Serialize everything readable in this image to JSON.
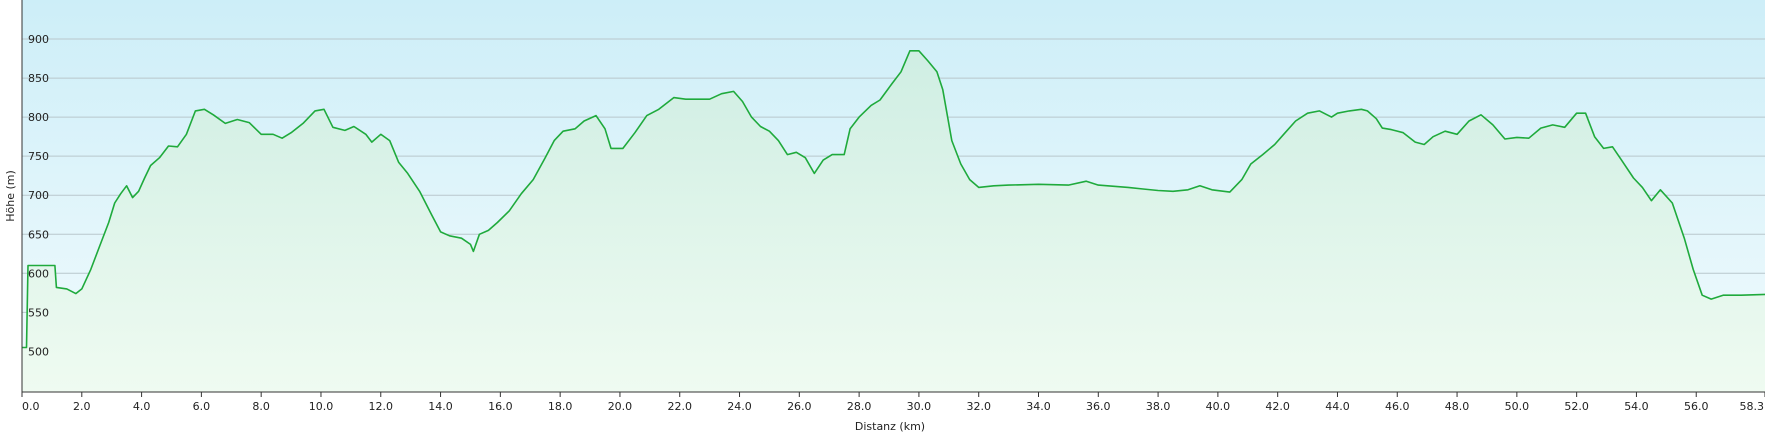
{
  "chart_data": {
    "type": "area",
    "xlabel": "Distanz  (km)",
    "ylabel": "Höhe (m)",
    "xlim": [
      0,
      58.3
    ],
    "ylim": [
      448,
      950
    ],
    "grid": true,
    "x_ticks": [
      "0.0",
      "2.0",
      "4.0",
      "6.0",
      "8.0",
      "10.0",
      "12.0",
      "14.0",
      "16.0",
      "18.0",
      "20.0",
      "22.0",
      "24.0",
      "26.0",
      "28.0",
      "30.0",
      "32.0",
      "34.0",
      "36.0",
      "38.0",
      "40.0",
      "42.0",
      "44.0",
      "46.0",
      "48.0",
      "50.0",
      "52.0",
      "54.0",
      "56.0",
      "58.3"
    ],
    "y_ticks": [
      "500",
      "550",
      "600",
      "650",
      "700",
      "750",
      "800",
      "850",
      "900"
    ],
    "series": [
      {
        "color": "#1faa3c",
        "points": [
          [
            0.0,
            505
          ],
          [
            0.15,
            505
          ],
          [
            0.2,
            610
          ],
          [
            0.5,
            610
          ],
          [
            1.1,
            610
          ],
          [
            1.15,
            582
          ],
          [
            1.5,
            580
          ],
          [
            1.8,
            574
          ],
          [
            2.0,
            580
          ],
          [
            2.3,
            605
          ],
          [
            2.6,
            635
          ],
          [
            2.9,
            665
          ],
          [
            3.1,
            690
          ],
          [
            3.3,
            702
          ],
          [
            3.5,
            712
          ],
          [
            3.7,
            697
          ],
          [
            3.9,
            705
          ],
          [
            4.1,
            722
          ],
          [
            4.3,
            738
          ],
          [
            4.6,
            748
          ],
          [
            4.9,
            763
          ],
          [
            5.2,
            762
          ],
          [
            5.5,
            778
          ],
          [
            5.8,
            808
          ],
          [
            6.1,
            810
          ],
          [
            6.4,
            803
          ],
          [
            6.8,
            792
          ],
          [
            7.2,
            797
          ],
          [
            7.6,
            793
          ],
          [
            8.0,
            778
          ],
          [
            8.4,
            778
          ],
          [
            8.7,
            773
          ],
          [
            9.0,
            780
          ],
          [
            9.4,
            792
          ],
          [
            9.8,
            808
          ],
          [
            10.1,
            810
          ],
          [
            10.4,
            787
          ],
          [
            10.8,
            783
          ],
          [
            11.1,
            788
          ],
          [
            11.5,
            778
          ],
          [
            11.7,
            768
          ],
          [
            12.0,
            778
          ],
          [
            12.3,
            770
          ],
          [
            12.6,
            742
          ],
          [
            12.9,
            728
          ],
          [
            13.3,
            705
          ],
          [
            13.7,
            675
          ],
          [
            14.0,
            653
          ],
          [
            14.3,
            648
          ],
          [
            14.7,
            645
          ],
          [
            15.0,
            637
          ],
          [
            15.1,
            628
          ],
          [
            15.3,
            650
          ],
          [
            15.6,
            655
          ],
          [
            15.9,
            665
          ],
          [
            16.3,
            680
          ],
          [
            16.7,
            702
          ],
          [
            17.1,
            720
          ],
          [
            17.5,
            748
          ],
          [
            17.8,
            770
          ],
          [
            18.1,
            782
          ],
          [
            18.5,
            785
          ],
          [
            18.8,
            795
          ],
          [
            19.2,
            802
          ],
          [
            19.5,
            785
          ],
          [
            19.7,
            760
          ],
          [
            20.1,
            760
          ],
          [
            20.5,
            780
          ],
          [
            20.9,
            802
          ],
          [
            21.3,
            810
          ],
          [
            21.8,
            825
          ],
          [
            22.2,
            823
          ],
          [
            22.6,
            823
          ],
          [
            23.0,
            823
          ],
          [
            23.4,
            830
          ],
          [
            23.8,
            833
          ],
          [
            24.1,
            820
          ],
          [
            24.4,
            800
          ],
          [
            24.7,
            788
          ],
          [
            25.0,
            782
          ],
          [
            25.3,
            770
          ],
          [
            25.6,
            752
          ],
          [
            25.9,
            755
          ],
          [
            26.2,
            748
          ],
          [
            26.5,
            728
          ],
          [
            26.8,
            745
          ],
          [
            27.1,
            752
          ],
          [
            27.5,
            752
          ],
          [
            27.7,
            785
          ],
          [
            28.0,
            800
          ],
          [
            28.4,
            815
          ],
          [
            28.7,
            822
          ],
          [
            29.1,
            843
          ],
          [
            29.4,
            858
          ],
          [
            29.7,
            885
          ],
          [
            30.0,
            885
          ],
          [
            30.3,
            872
          ],
          [
            30.6,
            858
          ],
          [
            30.8,
            835
          ],
          [
            31.1,
            770
          ],
          [
            31.4,
            740
          ],
          [
            31.7,
            720
          ],
          [
            32.0,
            710
          ],
          [
            32.5,
            712
          ],
          [
            33.0,
            713
          ],
          [
            34.0,
            714
          ],
          [
            35.0,
            713
          ],
          [
            35.6,
            718
          ],
          [
            36.0,
            713
          ],
          [
            37.0,
            710
          ],
          [
            37.5,
            708
          ],
          [
            38.0,
            706
          ],
          [
            38.5,
            705
          ],
          [
            39.0,
            707
          ],
          [
            39.4,
            712
          ],
          [
            39.8,
            707
          ],
          [
            40.4,
            704
          ],
          [
            40.8,
            720
          ],
          [
            41.1,
            740
          ],
          [
            41.5,
            752
          ],
          [
            41.9,
            765
          ],
          [
            42.2,
            778
          ],
          [
            42.6,
            795
          ],
          [
            43.0,
            805
          ],
          [
            43.4,
            808
          ],
          [
            43.8,
            800
          ],
          [
            44.0,
            805
          ],
          [
            44.4,
            808
          ],
          [
            44.8,
            810
          ],
          [
            45.0,
            808
          ],
          [
            45.3,
            798
          ],
          [
            45.5,
            786
          ],
          [
            45.8,
            784
          ],
          [
            46.2,
            780
          ],
          [
            46.6,
            768
          ],
          [
            46.9,
            765
          ],
          [
            47.2,
            775
          ],
          [
            47.6,
            782
          ],
          [
            48.0,
            778
          ],
          [
            48.4,
            795
          ],
          [
            48.8,
            803
          ],
          [
            49.2,
            790
          ],
          [
            49.6,
            772
          ],
          [
            50.0,
            774
          ],
          [
            50.4,
            773
          ],
          [
            50.8,
            786
          ],
          [
            51.2,
            790
          ],
          [
            51.6,
            787
          ],
          [
            52.0,
            805
          ],
          [
            52.3,
            805
          ],
          [
            52.6,
            775
          ],
          [
            52.9,
            760
          ],
          [
            53.2,
            762
          ],
          [
            53.5,
            745
          ],
          [
            53.9,
            722
          ],
          [
            54.2,
            710
          ],
          [
            54.5,
            693
          ],
          [
            54.8,
            707
          ],
          [
            55.2,
            690
          ],
          [
            55.6,
            645
          ],
          [
            55.9,
            605
          ],
          [
            56.2,
            572
          ],
          [
            56.5,
            567
          ],
          [
            56.9,
            572
          ],
          [
            57.5,
            572
          ],
          [
            58.3,
            573
          ]
        ]
      }
    ]
  }
}
